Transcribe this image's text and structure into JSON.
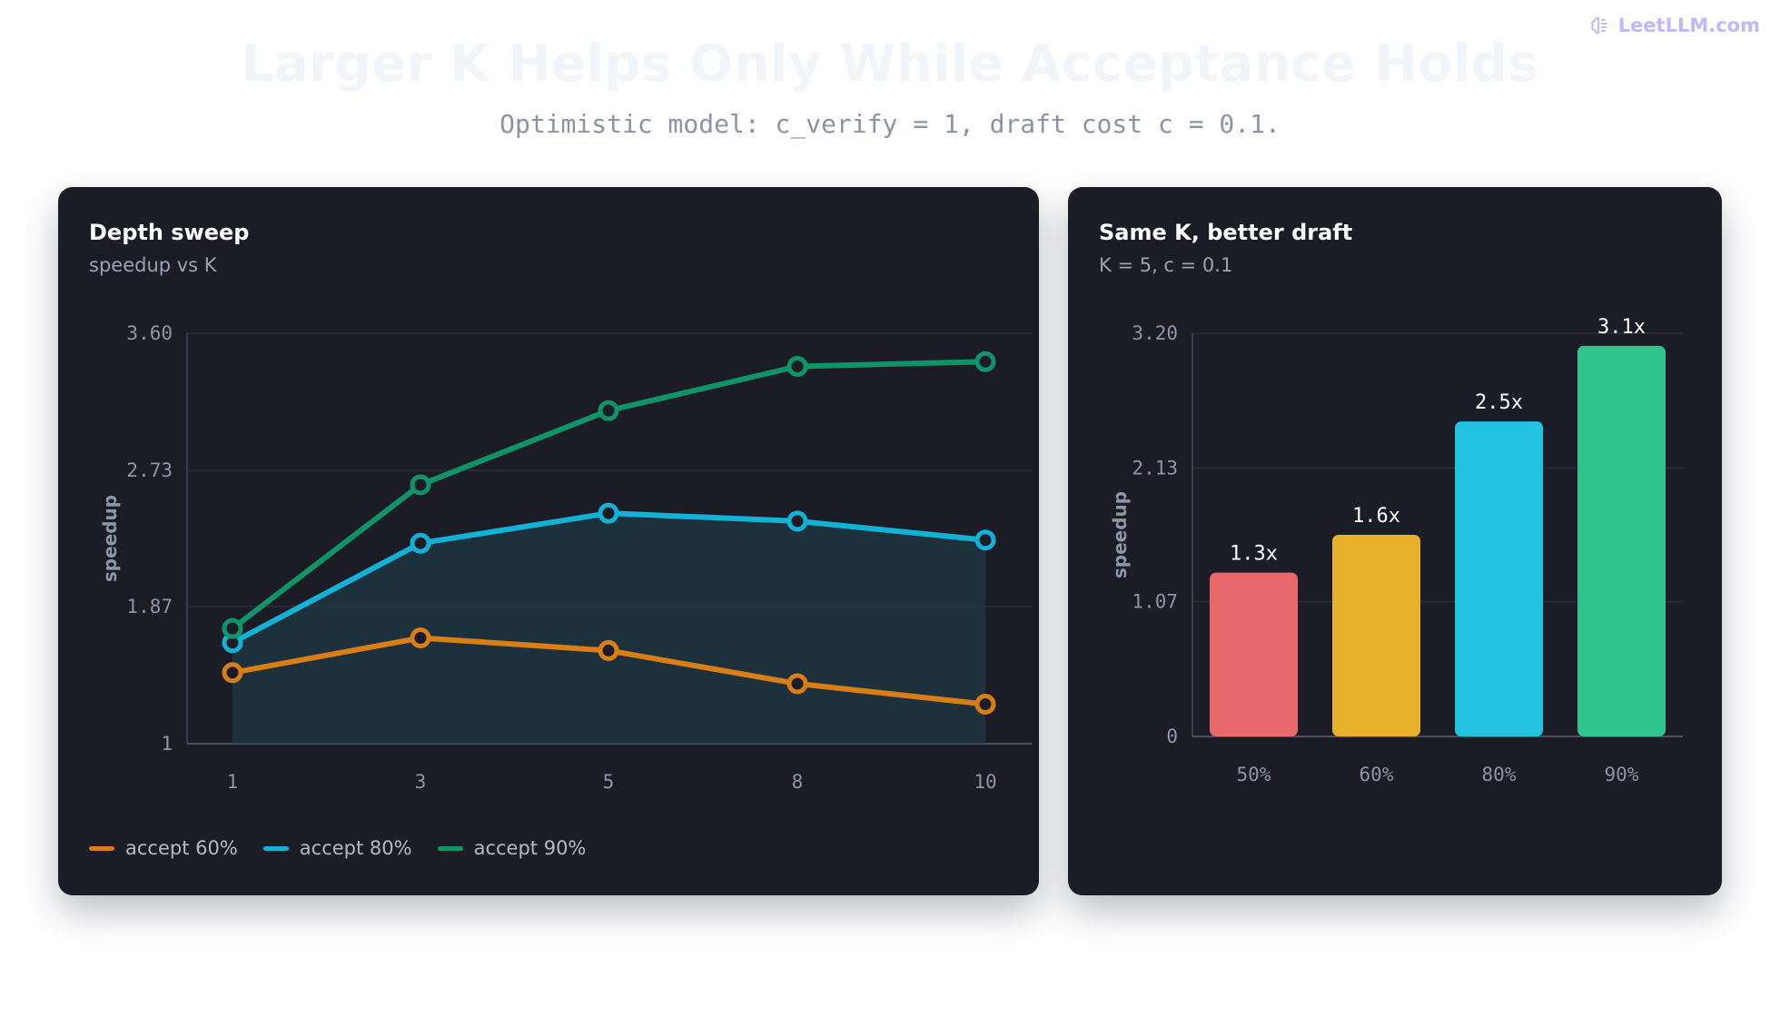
{
  "brand": {
    "name": "LeetLLM.com",
    "icon": "brain-icon"
  },
  "header": {
    "title": "Larger K Helps Only While Acceptance Holds",
    "subtitle": "Optimistic model: c_verify = 1, draft cost c = 0.1."
  },
  "chart_data": [
    {
      "type": "line",
      "title": "Depth sweep",
      "subtitle": "speedup vs K",
      "xlabel": "",
      "ylabel": "speedup",
      "x": [
        1,
        3,
        5,
        8,
        10
      ],
      "x_tick_labels": [
        "1",
        "3",
        "5",
        "8",
        "10"
      ],
      "y_tick_labels": [
        "1",
        "1.87",
        "2.73",
        "3.60"
      ],
      "ylim": [
        1,
        3.6
      ],
      "grid": true,
      "legend_position": "bottom-left",
      "shaded_area_series": "accept 80%",
      "series": [
        {
          "name": "accept 60%",
          "color": "#d97e15",
          "values": [
            1.45,
            1.67,
            1.59,
            1.38,
            1.25
          ]
        },
        {
          "name": "accept 80%",
          "color": "#11b2d6",
          "values": [
            1.64,
            2.27,
            2.46,
            2.41,
            2.29
          ]
        },
        {
          "name": "accept 90%",
          "color": "#0f9467",
          "values": [
            1.73,
            2.64,
            3.11,
            3.39,
            3.42
          ]
        }
      ]
    },
    {
      "type": "bar",
      "title": "Same K, better draft",
      "subtitle": "K = 5, c = 0.1",
      "xlabel": "",
      "ylabel": "speedup",
      "categories": [
        "50%",
        "60%",
        "80%",
        "90%"
      ],
      "values": [
        1.3,
        1.6,
        2.5,
        3.1
      ],
      "data_labels": [
        "1.3x",
        "1.6x",
        "2.5x",
        "3.1x"
      ],
      "colors": [
        "#e8696b",
        "#e8b12a",
        "#22c3e0",
        "#2fc58c"
      ],
      "y_tick_labels": [
        "0",
        "1.07",
        "2.13",
        "3.20"
      ],
      "ylim": [
        0,
        3.2
      ],
      "grid": true
    }
  ]
}
